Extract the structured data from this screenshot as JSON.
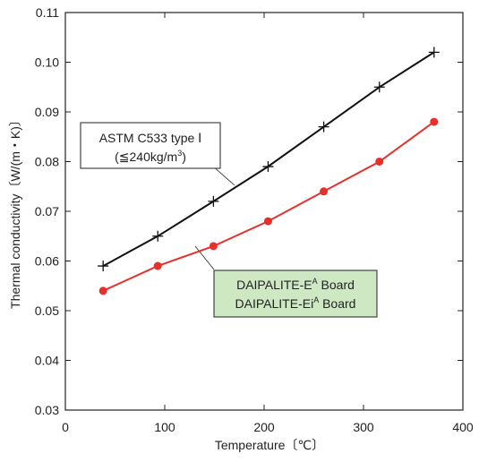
{
  "chart_data": {
    "type": "line",
    "xlabel": "Temperature〔℃〕",
    "ylabel": "Thermal conductivity〔W/(m・K)〕",
    "xlim": [
      0,
      400
    ],
    "ylim": [
      0.03,
      0.11
    ],
    "xticks": [
      0,
      100,
      200,
      300,
      400
    ],
    "yticks": [
      0.03,
      0.04,
      0.05,
      0.06,
      0.07,
      0.08,
      0.09,
      0.1,
      0.11
    ],
    "xtick_labels": [
      "0",
      "100",
      "200",
      "300",
      "400"
    ],
    "ytick_labels": [
      "0.03",
      "0.04",
      "0.05",
      "0.06",
      "0.07",
      "0.08",
      "0.09",
      "0.10",
      "0.11"
    ],
    "grid": false,
    "series": [
      {
        "name": "ASTM C533 type Ⅰ (≦240kg/m³)",
        "color": "#111111",
        "marker": "plus",
        "x": [
          38,
          93,
          149,
          204,
          260,
          316,
          371
        ],
        "y": [
          0.059,
          0.065,
          0.072,
          0.079,
          0.087,
          0.095,
          0.102
        ]
      },
      {
        "name": "DAIPALITE-Eᴬ Board / DAIPALITE-Eiᴬ Board",
        "color": "#e8302a",
        "marker": "circle",
        "x": [
          38,
          93,
          149,
          204,
          260,
          316,
          371
        ],
        "y": [
          0.054,
          0.059,
          0.063,
          0.068,
          0.074,
          0.08,
          0.088
        ]
      }
    ],
    "annotations": {
      "astm_line1": "ASTM C533 type Ⅰ",
      "astm_line2": "(≦240kg/m",
      "astm_sup": "3",
      "astm_close": ")",
      "dai_line1_a": "DAIPALITE-E",
      "dai_line1_sup": "A",
      "dai_line1_b": " Board",
      "dai_line2_a": "DAIPALITE-Ei",
      "dai_line2_sup": "A",
      "dai_line2_b": " Board",
      "dai_box_fill": "#cfe8c4"
    }
  }
}
